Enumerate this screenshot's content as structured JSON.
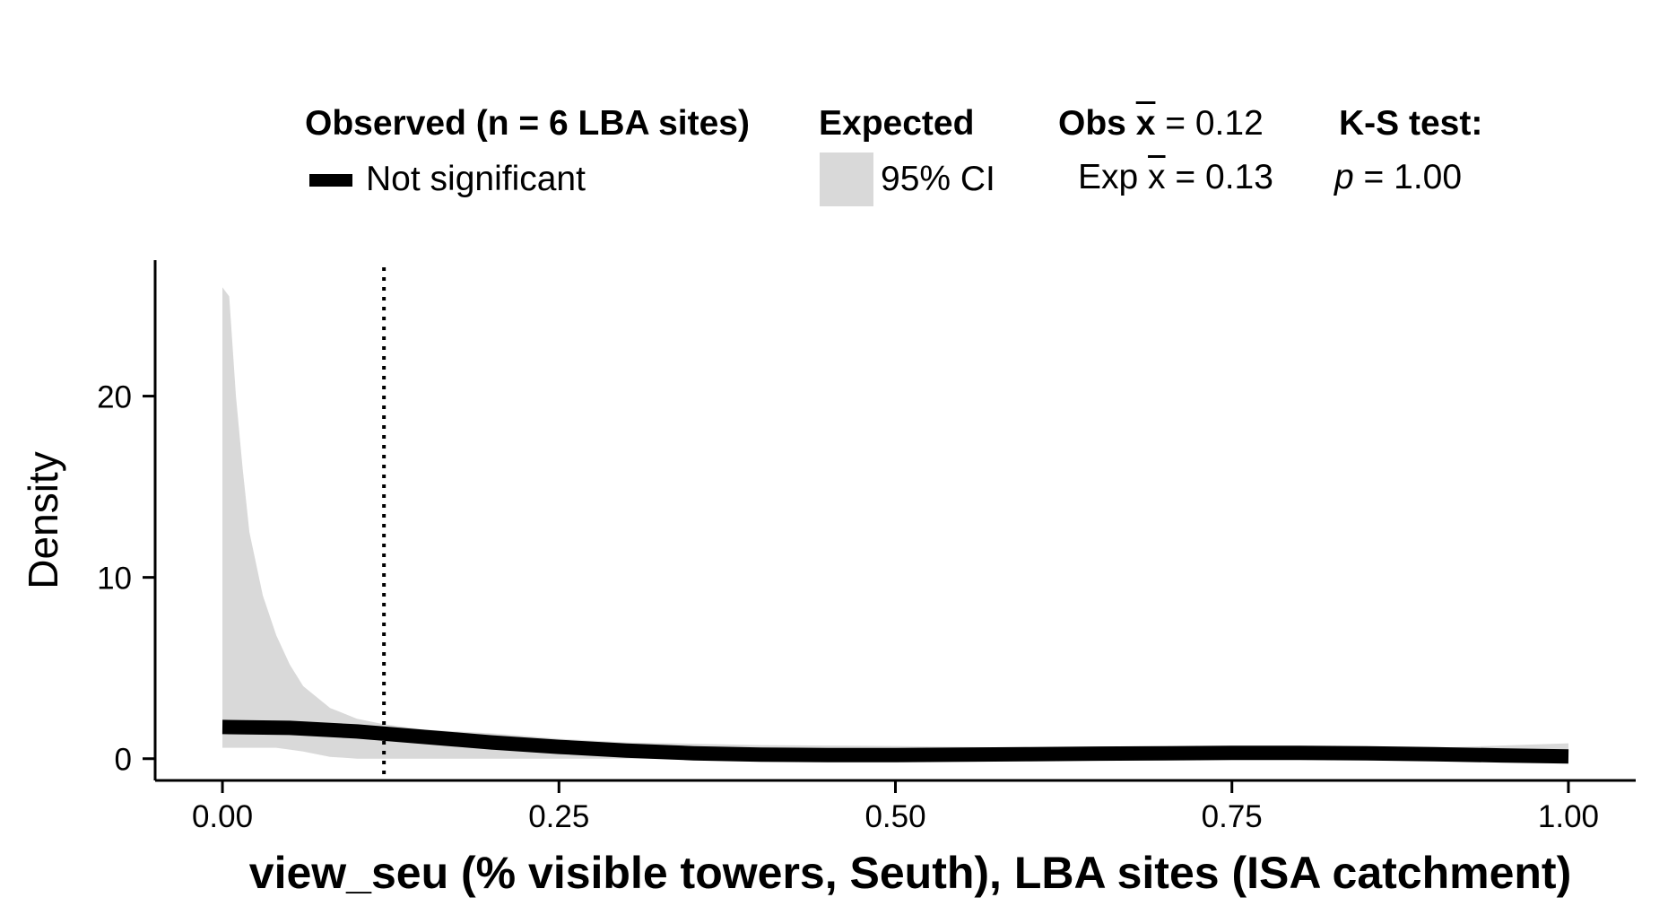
{
  "legend": {
    "observed_title": "Observed (n = 6 LBA sites)",
    "observed_item": "Not significant",
    "expected_title": "Expected",
    "expected_item": "95% CI",
    "obs_mean_prefix": "Obs",
    "obs_mean_symbol": "x",
    "obs_mean_value": "= 0.12",
    "exp_mean_prefix": "Exp",
    "exp_mean_symbol": "x",
    "exp_mean_value": "= 0.13",
    "ks_title": "K-S test:",
    "ks_p_symbol": "p",
    "ks_p_value": "= 1.00"
  },
  "chart_data": {
    "type": "area",
    "xlabel": "view_seu (% visible towers, Seuth), LBA sites (ISA catchment)",
    "ylabel": "Density",
    "xlim": [
      -0.05,
      1.05
    ],
    "ylim": [
      -1.2,
      27.5
    ],
    "x_ticks": [
      0.0,
      0.25,
      0.5,
      0.75,
      1.0
    ],
    "x_tick_labels": [
      "0.00",
      "0.25",
      "0.50",
      "0.75",
      "1.00"
    ],
    "y_ticks": [
      0,
      10,
      20
    ],
    "y_tick_labels": [
      "0",
      "10",
      "20"
    ],
    "grid": false,
    "observed_mean": 0.12,
    "expected_mean": 0.13,
    "ks_p": 1.0,
    "colors": {
      "observed": "#000000",
      "ci_band": "#d9d9d9",
      "mean_line": "#000000"
    },
    "ci_band": {
      "x": [
        0.0,
        0.005,
        0.01,
        0.015,
        0.02,
        0.03,
        0.04,
        0.05,
        0.06,
        0.08,
        0.1,
        0.12,
        0.15,
        0.2,
        0.25,
        0.3,
        0.4,
        0.5,
        0.6,
        0.75,
        0.9,
        1.0
      ],
      "upper": [
        26.0,
        25.5,
        20.0,
        16.0,
        12.5,
        9.0,
        6.8,
        5.2,
        4.0,
        2.8,
        2.2,
        1.9,
        1.6,
        1.4,
        1.1,
        0.9,
        0.75,
        0.7,
        0.6,
        0.55,
        0.6,
        0.85
      ],
      "lower": [
        0.6,
        0.6,
        0.6,
        0.6,
        0.6,
        0.6,
        0.6,
        0.5,
        0.4,
        0.1,
        0.0,
        0.0,
        0.0,
        0.0,
        0.0,
        0.0,
        0.0,
        0.0,
        0.0,
        0.0,
        0.0,
        0.0
      ]
    },
    "series": [
      {
        "name": "Not significant",
        "x": [
          0.0,
          0.05,
          0.1,
          0.15,
          0.2,
          0.25,
          0.3,
          0.35,
          0.4,
          0.45,
          0.5,
          0.55,
          0.6,
          0.65,
          0.7,
          0.75,
          0.8,
          0.85,
          0.9,
          0.95,
          1.0
        ],
        "y": [
          1.75,
          1.7,
          1.5,
          1.2,
          0.9,
          0.65,
          0.45,
          0.3,
          0.22,
          0.2,
          0.2,
          0.22,
          0.25,
          0.28,
          0.3,
          0.32,
          0.32,
          0.3,
          0.25,
          0.18,
          0.12
        ]
      }
    ]
  }
}
